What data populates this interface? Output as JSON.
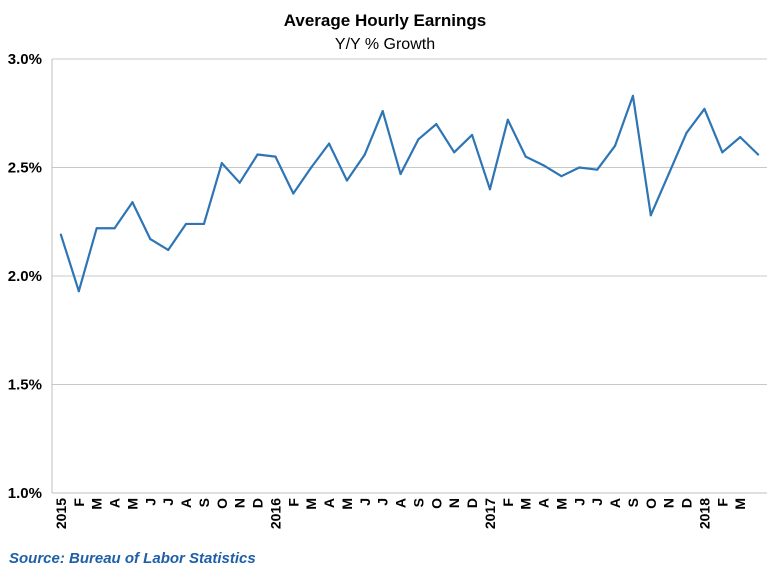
{
  "chart_data": {
    "type": "line",
    "title": "Average Hourly Earnings",
    "subtitle": "Y/Y % Growth",
    "xlabel": "",
    "ylabel": "",
    "ylim": [
      1.0,
      3.0
    ],
    "y_ticks": [
      "1.0%",
      "1.5%",
      "2.0%",
      "2.5%",
      "3.0%"
    ],
    "y_tick_values": [
      1.0,
      1.5,
      2.0,
      2.5,
      3.0
    ],
    "grid": true,
    "legend": "none",
    "x": [
      "2015",
      "F",
      "M",
      "A",
      "M",
      "J",
      "J",
      "A",
      "S",
      "O",
      "N",
      "D",
      "2016",
      "F",
      "M",
      "A",
      "M",
      "J",
      "J",
      "A",
      "S",
      "O",
      "N",
      "D",
      "2017",
      "F",
      "M",
      "A",
      "M",
      "J",
      "J",
      "A",
      "S",
      "O",
      "N",
      "D",
      "2018",
      "F",
      "M",
      ""
    ],
    "series": [
      {
        "values": [
          2.19,
          1.93,
          2.22,
          2.22,
          2.34,
          2.17,
          2.12,
          2.24,
          2.24,
          2.52,
          2.43,
          2.56,
          2.55,
          2.38,
          2.5,
          2.61,
          2.44,
          2.56,
          2.76,
          2.47,
          2.63,
          2.7,
          2.57,
          2.65,
          2.4,
          2.72,
          2.55,
          2.51,
          2.46,
          2.5,
          2.49,
          2.6,
          2.83,
          2.28,
          2.47,
          2.66,
          2.77,
          2.57,
          2.64,
          2.56
        ],
        "color": "#2e75b6"
      }
    ]
  },
  "source": "Source: Bureau of Labor Statistics"
}
